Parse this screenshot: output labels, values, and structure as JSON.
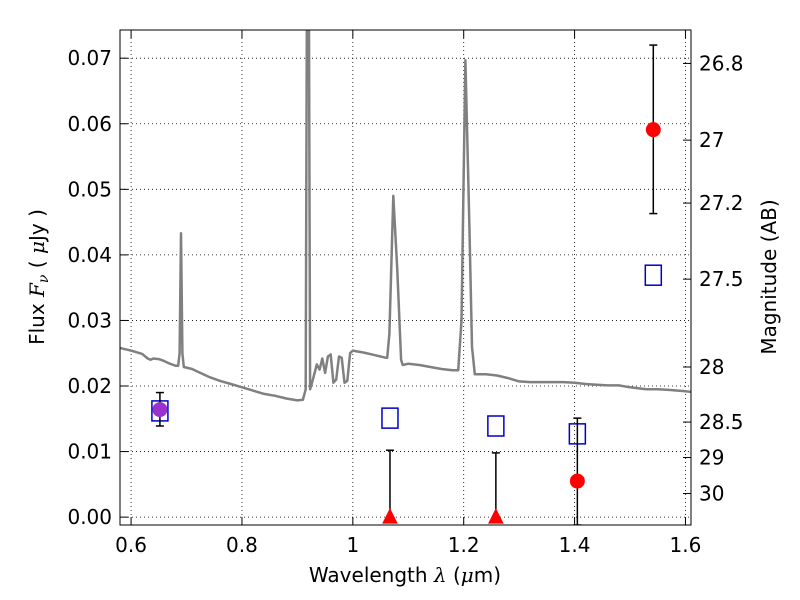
{
  "chart_data": {
    "type": "scatter",
    "xlabel": {
      "prefix": "Wavelength  ",
      "symbol": "λ",
      "mid": " (",
      "mu": "μ",
      "unit": "m)"
    },
    "ylabel": {
      "prefix": "Flux  ",
      "symbol": "F",
      "sub": "ν",
      "mid": "  ( ",
      "mu": "μ",
      "unit": "Jy )"
    },
    "y2label": "Magnitude (AB)",
    "xlim": [
      0.58,
      1.61
    ],
    "ylim": [
      -0.0012,
      0.0743
    ],
    "grid": true,
    "x_ticks": [
      {
        "value": 0.6,
        "label": "0.6"
      },
      {
        "value": 0.8,
        "label": "0.8"
      },
      {
        "value": 1.0,
        "label": "1"
      },
      {
        "value": 1.2,
        "label": "1.2"
      },
      {
        "value": 1.4,
        "label": "1.4"
      },
      {
        "value": 1.6,
        "label": "1.6"
      }
    ],
    "y_ticks": [
      {
        "value": 0.0,
        "label": "0.00"
      },
      {
        "value": 0.01,
        "label": "0.01"
      },
      {
        "value": 0.02,
        "label": "0.02"
      },
      {
        "value": 0.03,
        "label": "0.03"
      },
      {
        "value": 0.04,
        "label": "0.04"
      },
      {
        "value": 0.05,
        "label": "0.05"
      },
      {
        "value": 0.06,
        "label": "0.06"
      },
      {
        "value": 0.07,
        "label": "0.07"
      }
    ],
    "mag_ticks": [
      {
        "label": "26.8",
        "flux": 0.0692
      },
      {
        "label": "27",
        "flux": 0.0575
      },
      {
        "label": "27.2",
        "flux": 0.0479
      },
      {
        "label": "27.5",
        "flux": 0.0363
      },
      {
        "label": "28",
        "flux": 0.0229
      },
      {
        "label": "28.5",
        "flux": 0.0145
      },
      {
        "label": "29",
        "flux": 0.0091
      },
      {
        "label": "30",
        "flux": 0.0036
      }
    ],
    "series": [
      {
        "kind": "model_spectrum",
        "color": "#808080",
        "points": [
          [
            0.58,
            0.0258
          ],
          [
            0.6,
            0.0254
          ],
          [
            0.62,
            0.0249
          ],
          [
            0.63,
            0.0242
          ],
          [
            0.635,
            0.024
          ],
          [
            0.64,
            0.0242
          ],
          [
            0.65,
            0.0241
          ],
          [
            0.66,
            0.0238
          ],
          [
            0.67,
            0.0234
          ],
          [
            0.68,
            0.0231
          ],
          [
            0.685,
            0.0231
          ],
          [
            0.6875,
            0.025
          ],
          [
            0.69,
            0.0433
          ],
          [
            0.6925,
            0.025
          ],
          [
            0.695,
            0.0229
          ],
          [
            0.71,
            0.0226
          ],
          [
            0.72,
            0.0222
          ],
          [
            0.74,
            0.0214
          ],
          [
            0.76,
            0.0208
          ],
          [
            0.78,
            0.0203
          ],
          [
            0.8,
            0.0198
          ],
          [
            0.82,
            0.0193
          ],
          [
            0.84,
            0.0188
          ],
          [
            0.86,
            0.0185
          ],
          [
            0.88,
            0.0181
          ],
          [
            0.9,
            0.0178
          ],
          [
            0.91,
            0.0179
          ],
          [
            0.915,
            0.0195
          ],
          [
            0.917,
            0.0743
          ],
          [
            0.921,
            0.0743
          ],
          [
            0.923,
            0.0195
          ],
          [
            0.928,
            0.021
          ],
          [
            0.935,
            0.0233
          ],
          [
            0.94,
            0.0225
          ],
          [
            0.945,
            0.0242
          ],
          [
            0.95,
            0.022
          ],
          [
            0.955,
            0.0245
          ],
          [
            0.96,
            0.0248
          ],
          [
            0.965,
            0.0205
          ],
          [
            0.97,
            0.021
          ],
          [
            0.975,
            0.0245
          ],
          [
            0.98,
            0.0243
          ],
          [
            0.985,
            0.0205
          ],
          [
            0.99,
            0.0208
          ],
          [
            0.995,
            0.025
          ],
          [
            1.0,
            0.0254
          ],
          [
            1.02,
            0.0251
          ],
          [
            1.04,
            0.0247
          ],
          [
            1.06,
            0.0243
          ],
          [
            1.062,
            0.0243
          ],
          [
            1.066,
            0.028
          ],
          [
            1.073,
            0.049
          ],
          [
            1.08,
            0.038
          ],
          [
            1.087,
            0.024
          ],
          [
            1.09,
            0.0232
          ],
          [
            1.1,
            0.0234
          ],
          [
            1.12,
            0.0232
          ],
          [
            1.14,
            0.0229
          ],
          [
            1.16,
            0.0226
          ],
          [
            1.18,
            0.0224
          ],
          [
            1.19,
            0.0224
          ],
          [
            1.196,
            0.03
          ],
          [
            1.203,
            0.0697
          ],
          [
            1.21,
            0.045
          ],
          [
            1.215,
            0.026
          ],
          [
            1.22,
            0.0218
          ],
          [
            1.24,
            0.0218
          ],
          [
            1.26,
            0.0216
          ],
          [
            1.28,
            0.0212
          ],
          [
            1.3,
            0.0207
          ],
          [
            1.32,
            0.0206
          ],
          [
            1.34,
            0.0206
          ],
          [
            1.36,
            0.0206
          ],
          [
            1.38,
            0.0206
          ],
          [
            1.4,
            0.0205
          ],
          [
            1.42,
            0.0203
          ],
          [
            1.44,
            0.0202
          ],
          [
            1.46,
            0.0201
          ],
          [
            1.48,
            0.0201
          ],
          [
            1.5,
            0.0198
          ],
          [
            1.52,
            0.0196
          ],
          [
            1.53,
            0.0195
          ],
          [
            1.55,
            0.0195
          ],
          [
            1.57,
            0.0194
          ],
          [
            1.6,
            0.0192
          ],
          [
            1.61,
            0.0191
          ]
        ]
      },
      {
        "kind": "model_photometry",
        "marker": "open-square",
        "color": "#0000cc",
        "points": [
          {
            "x": 0.652,
            "y": 0.0162
          },
          {
            "x": 1.067,
            "y": 0.0151
          },
          {
            "x": 1.258,
            "y": 0.0139
          },
          {
            "x": 1.405,
            "y": 0.0127
          },
          {
            "x": 1.542,
            "y": 0.0369
          }
        ]
      },
      {
        "kind": "observed_photometry",
        "marker": "filled-circle",
        "points": [
          {
            "x": 0.652,
            "y": 0.0164,
            "yerr_low": 0.0139,
            "yerr_high": 0.019,
            "marker": "circle",
            "color": "#9933cc"
          },
          {
            "x": 1.067,
            "y": 0.0,
            "yerr_low": 0.0,
            "yerr_high": 0.0102,
            "marker": "triangle",
            "color": "#ff0000"
          },
          {
            "x": 1.258,
            "y": 0.0,
            "yerr_low": 0.0,
            "yerr_high": 0.0098,
            "marker": "triangle",
            "color": "#ff0000"
          },
          {
            "x": 1.405,
            "y": 0.0055,
            "yerr_low": -0.0012,
            "yerr_high": 0.0151,
            "marker": "circle",
            "color": "#ff0000"
          },
          {
            "x": 1.542,
            "y": 0.0591,
            "yerr_low": 0.0463,
            "yerr_high": 0.072,
            "marker": "circle",
            "color": "#ff0000"
          }
        ]
      }
    ]
  }
}
